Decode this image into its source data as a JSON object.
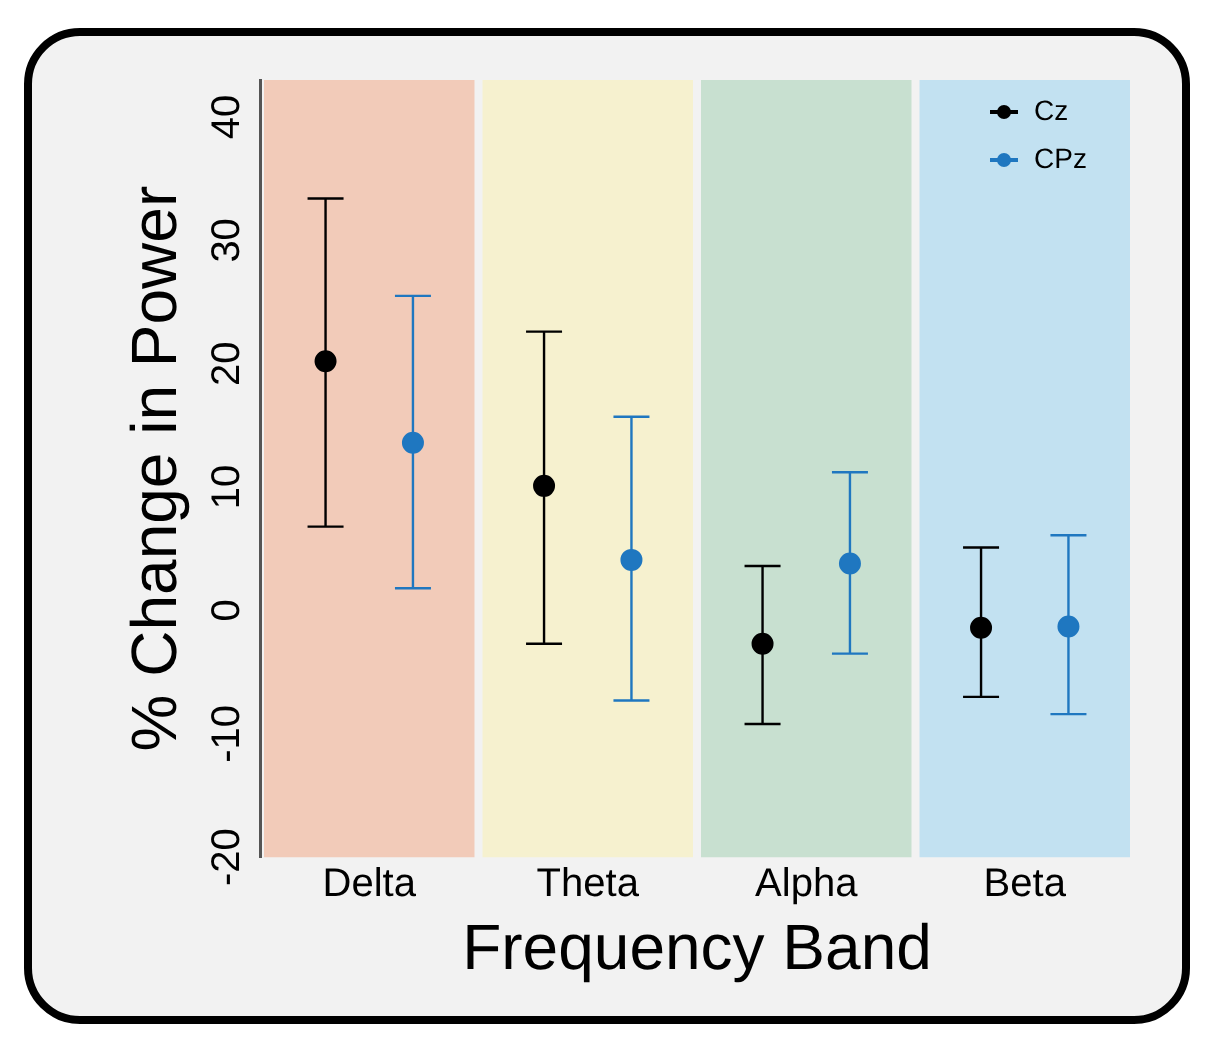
{
  "chart_data": {
    "type": "scatter",
    "xlabel": "Frequency Band",
    "ylabel": "% Change in Power",
    "categories": [
      "Delta",
      "Theta",
      "Alpha",
      "Beta"
    ],
    "series": [
      {
        "name": "Cz",
        "color": "#000000",
        "x": [
          "Delta",
          "Theta",
          "Alpha",
          "Beta"
        ],
        "values": [
          20.2,
          10.1,
          -2.7,
          -1.4
        ],
        "errors": [
          [
            6.8,
            33.4
          ],
          [
            -2.7,
            22.6
          ],
          [
            -9.2,
            3.6
          ],
          [
            -7.0,
            5.1
          ]
        ]
      },
      {
        "name": "CPz",
        "color": "#1f77c0",
        "x": [
          "Delta",
          "Theta",
          "Alpha",
          "Beta"
        ],
        "values": [
          13.6,
          4.1,
          3.8,
          -1.3
        ],
        "errors": [
          [
            1.8,
            25.5
          ],
          [
            -7.3,
            15.7
          ],
          [
            -3.5,
            11.2
          ],
          [
            -8.4,
            6.1
          ]
        ]
      }
    ],
    "bands": [
      {
        "axis": "x",
        "from": "Delta",
        "to": "Delta",
        "color": "#f2cbb9"
      },
      {
        "axis": "x",
        "from": "Theta",
        "to": "Theta",
        "color": "#f6f1cf"
      },
      {
        "axis": "x",
        "from": "Alpha",
        "to": "Alpha",
        "color": "#c8e0d0"
      },
      {
        "axis": "x",
        "from": "Beta",
        "to": "Beta",
        "color": "#c2e1f1"
      }
    ],
    "ylim": [
      -20,
      43
    ],
    "yticks": [
      -20,
      -10,
      0,
      10,
      20,
      30,
      40
    ],
    "grid": false,
    "legend": "top right",
    "marker": "circle"
  }
}
